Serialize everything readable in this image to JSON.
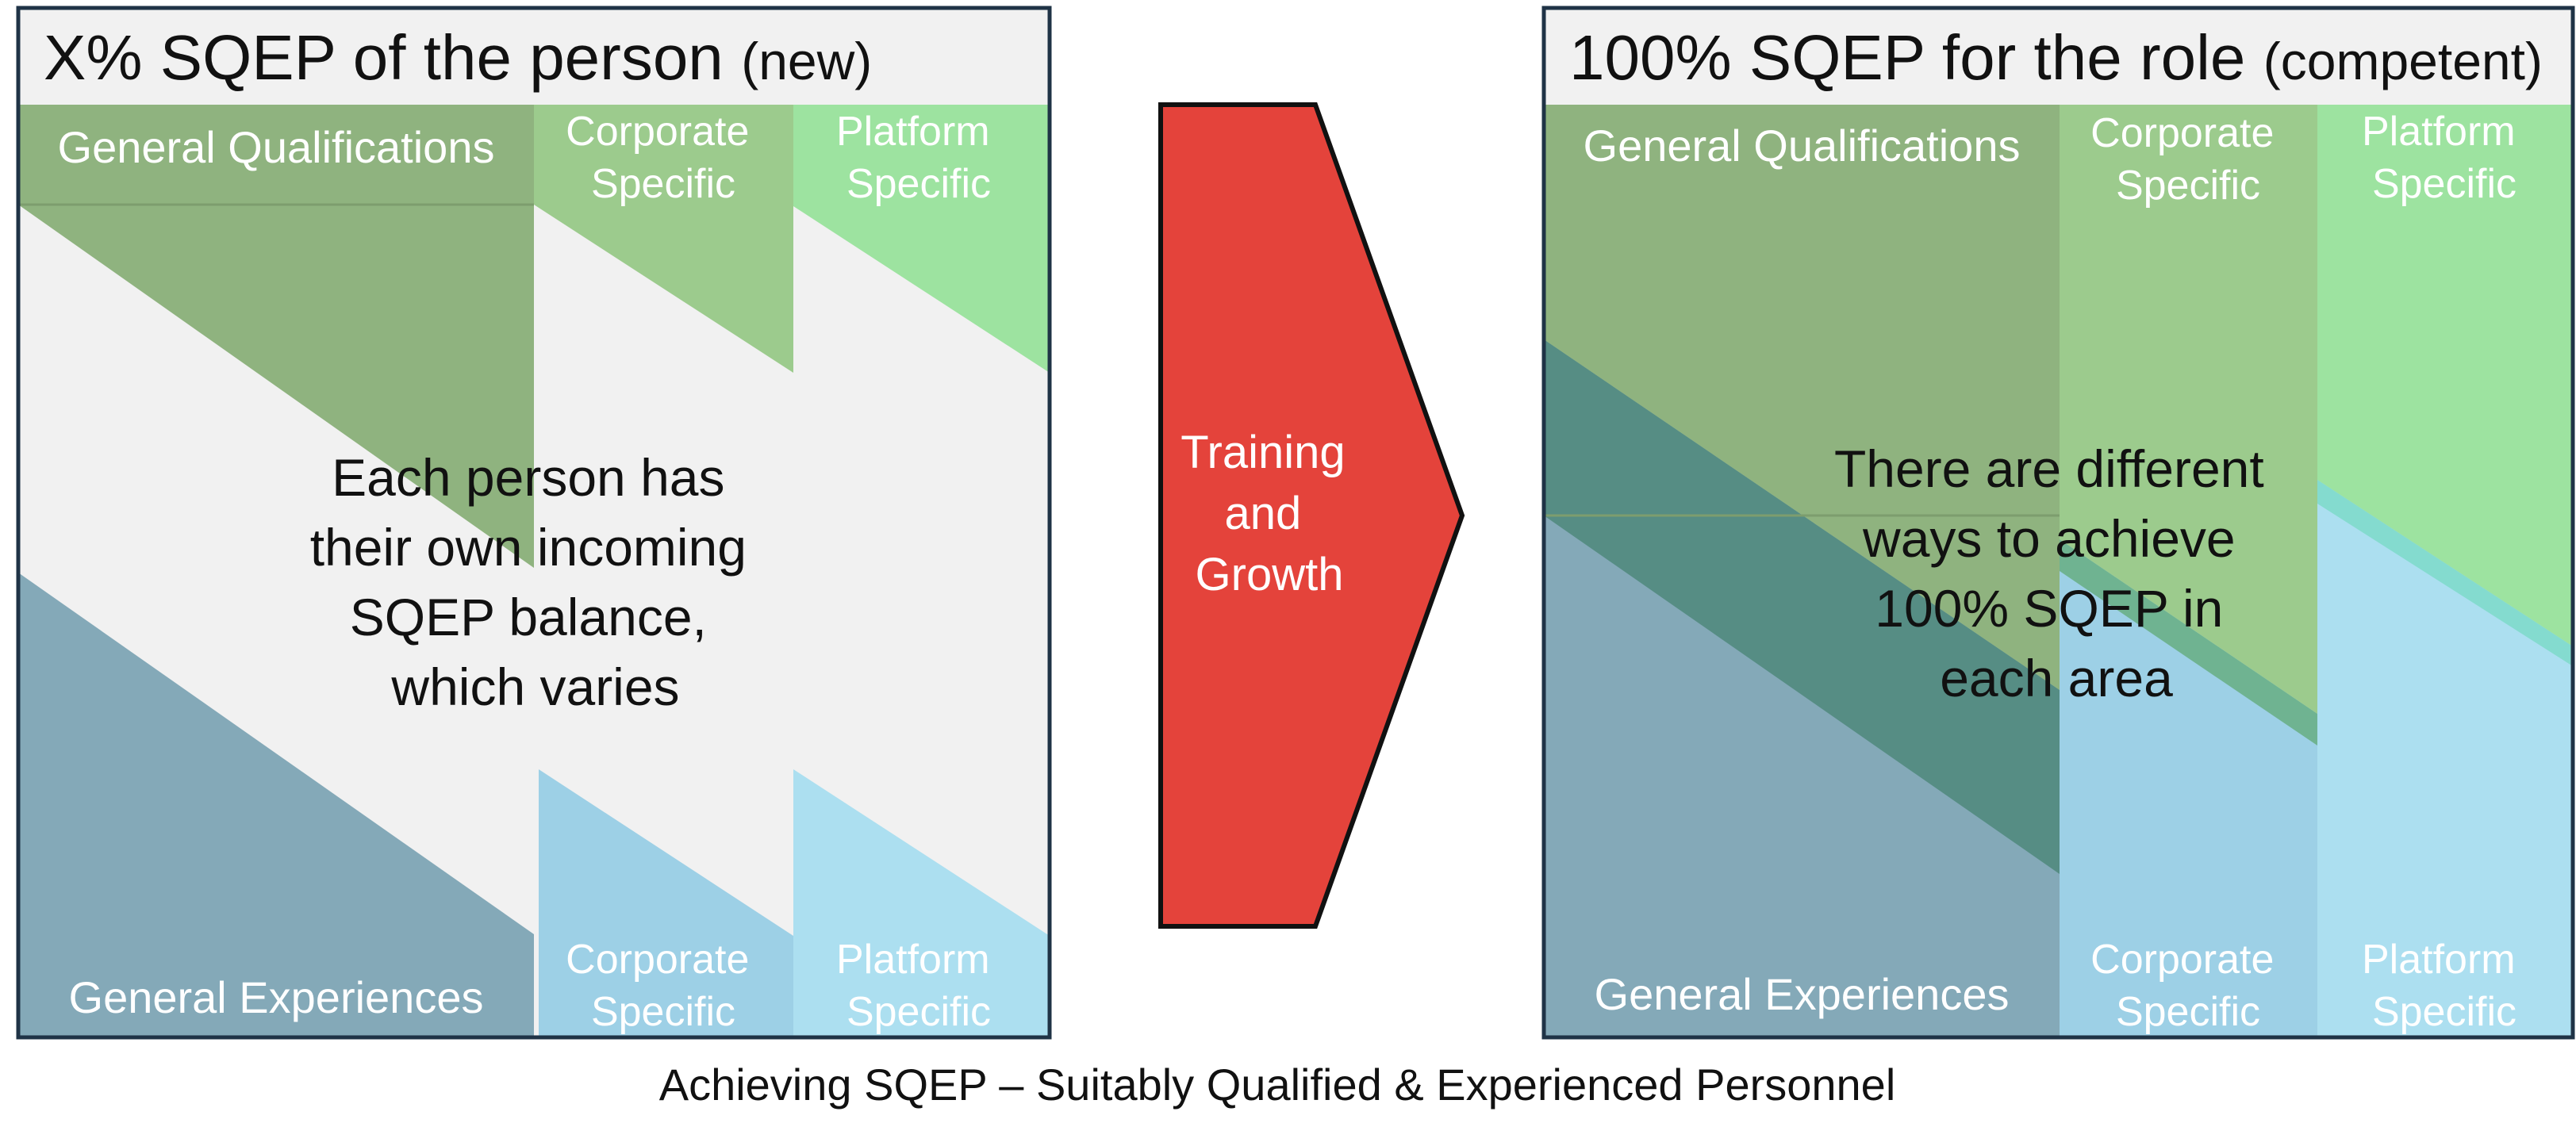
{
  "colors": {
    "panel_bg": "#f1f1f1",
    "border": "#1f3346",
    "general_qualifications": "#8fb37f",
    "corporate_qualifications": "#9ccb8d",
    "platform_qualifications": "#9de3a0",
    "general_experiences": "#84a9b8",
    "corporate_experiences": "#9dd0e6",
    "platform_experiences": "#acdff0",
    "overlap_teal": "#568d84",
    "overlap_cyan": "#84dbcf",
    "arrow_fill": "#e4433b",
    "arrow_stroke": "#111111"
  },
  "left_panel": {
    "title_main": "X% SQEP of the person",
    "title_sub": "(new)",
    "general_qualifications": "General Qualifications",
    "corporate_specific_top": [
      "Corporate",
      "Specific"
    ],
    "platform_specific_top": [
      "Platform",
      "Specific"
    ],
    "general_experiences": "General Experiences",
    "corporate_specific_bottom": [
      "Corporate",
      "Specific"
    ],
    "platform_specific_bottom": [
      "Platform",
      "Specific"
    ],
    "note": [
      "Each person has",
      "their own incoming",
      "SQEP balance,",
      "which varies"
    ]
  },
  "arrow": {
    "label": [
      "Training",
      "and",
      "Growth"
    ]
  },
  "right_panel": {
    "title_main": "100% SQEP for the role",
    "title_sub": "(competent)",
    "general_qualifications": "General Qualifications",
    "corporate_specific_top": [
      "Corporate",
      "Specific"
    ],
    "platform_specific_top": [
      "Platform",
      "Specific"
    ],
    "general_experiences": "General Experiences",
    "corporate_specific_bottom": [
      "Corporate",
      "Specific"
    ],
    "platform_specific_bottom": [
      "Platform",
      "Specific"
    ],
    "note": [
      "There are different",
      "ways to achieve",
      "100% SQEP in",
      "each area"
    ]
  },
  "caption": "Achieving SQEP – Suitably Qualified & Experienced Personnel"
}
